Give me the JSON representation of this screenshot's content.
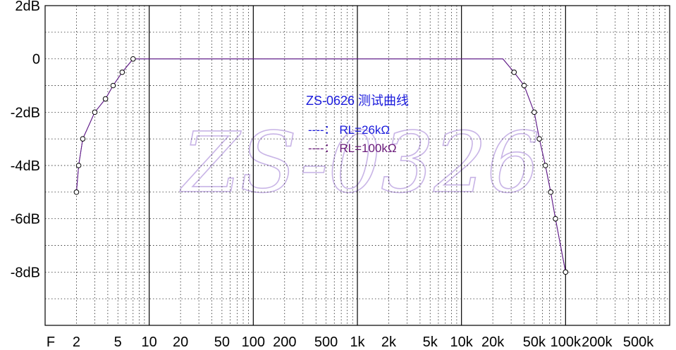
{
  "chart_data": {
    "type": "line",
    "title": "ZS-0626 测试曲线",
    "watermark": "ZS-0326",
    "x_scale": "log",
    "xlim": [
      1,
      1000000
    ],
    "ylim": [
      -10,
      2
    ],
    "x_axis_label": "F",
    "x_ticks": [
      {
        "v": 2,
        "label": "2"
      },
      {
        "v": 5,
        "label": "5"
      },
      {
        "v": 10,
        "label": "10"
      },
      {
        "v": 20,
        "label": "20"
      },
      {
        "v": 50,
        "label": "50"
      },
      {
        "v": 100,
        "label": "100"
      },
      {
        "v": 200,
        "label": "200"
      },
      {
        "v": 500,
        "label": "500"
      },
      {
        "v": 1000,
        "label": "1k"
      },
      {
        "v": 2000,
        "label": "2k"
      },
      {
        "v": 5000,
        "label": "5k"
      },
      {
        "v": 10000,
        "label": "10k"
      },
      {
        "v": 20000,
        "label": "20k"
      },
      {
        "v": 50000,
        "label": "50k"
      },
      {
        "v": 100000,
        "label": "100k"
      },
      {
        "v": 200000,
        "label": "200k"
      },
      {
        "v": 500000,
        "label": "500k"
      }
    ],
    "y_ticks": [
      {
        "v": 2,
        "label": "2dB"
      },
      {
        "v": 0,
        "label": "0"
      },
      {
        "v": -2,
        "label": "-2dB"
      },
      {
        "v": -4,
        "label": "-4dB"
      },
      {
        "v": -6,
        "label": "-6dB"
      },
      {
        "v": -8,
        "label": "-8dB"
      }
    ],
    "grid": true,
    "legend": [
      {
        "text": "----：  RL=26kΩ",
        "color": "#1a1adc"
      },
      {
        "text": "----：  RL=100kΩ",
        "color": "#6a1a7a"
      }
    ],
    "series": [
      {
        "color": "#1a1adc",
        "points": [
          [
            2,
            -5
          ],
          [
            2.1,
            -4
          ],
          [
            2.3,
            -3
          ],
          [
            3,
            -2
          ],
          [
            3.8,
            -1.5
          ],
          [
            4.5,
            -1
          ],
          [
            5.5,
            -0.5
          ],
          [
            7,
            0
          ],
          [
            10,
            0
          ],
          [
            1000,
            0
          ],
          [
            20000,
            0
          ],
          [
            25000,
            0
          ],
          [
            32000,
            -0.5
          ],
          [
            40000,
            -1
          ],
          [
            50000,
            -2
          ],
          [
            56000,
            -3
          ],
          [
            64000,
            -4
          ],
          [
            72000,
            -5
          ],
          [
            80000,
            -6
          ],
          [
            100000,
            -8
          ]
        ]
      },
      {
        "color": "#6a1a7a",
        "points": [
          [
            2,
            -5
          ],
          [
            2.1,
            -4
          ],
          [
            2.3,
            -3
          ],
          [
            3,
            -2
          ],
          [
            3.8,
            -1.5
          ],
          [
            4.5,
            -1
          ],
          [
            5.5,
            -0.5
          ],
          [
            7,
            0
          ],
          [
            10,
            0
          ],
          [
            1000,
            0
          ],
          [
            20000,
            0
          ],
          [
            25000,
            0
          ],
          [
            32000,
            -0.5
          ],
          [
            40000,
            -1
          ],
          [
            50000,
            -2
          ],
          [
            56000,
            -3
          ],
          [
            64000,
            -4
          ],
          [
            72000,
            -5
          ],
          [
            80000,
            -6
          ],
          [
            100000,
            -8
          ]
        ]
      }
    ],
    "markers": [
      [
        2,
        -5
      ],
      [
        2.1,
        -4
      ],
      [
        2.3,
        -3
      ],
      [
        3,
        -2
      ],
      [
        3.8,
        -1.5
      ],
      [
        4.5,
        -1
      ],
      [
        5.5,
        -0.5
      ],
      [
        7,
        0
      ],
      [
        32000,
        -0.5
      ],
      [
        40000,
        -1
      ],
      [
        50000,
        -2
      ],
      [
        56000,
        -3
      ],
      [
        64000,
        -4
      ],
      [
        72000,
        -5
      ],
      [
        80000,
        -6
      ],
      [
        100000,
        -8
      ]
    ],
    "colors": {
      "title": "#1a1adc",
      "watermark": "#c8b4e6",
      "grid_major": "#000000",
      "grid_minor": "#000000"
    }
  }
}
